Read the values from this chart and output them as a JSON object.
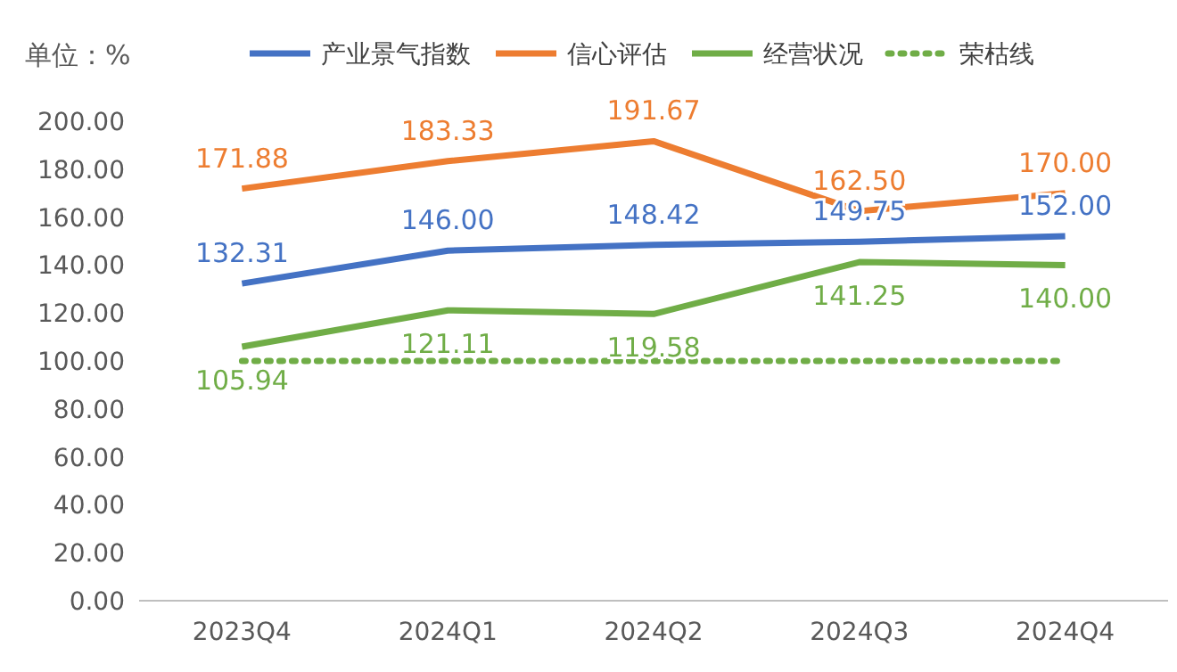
{
  "chart_data": {
    "type": "line",
    "ylabel": "单位：%",
    "categories": [
      "2023Q4",
      "2024Q1",
      "2024Q2",
      "2024Q3",
      "2024Q4"
    ],
    "series": [
      {
        "name": "产业景气指数",
        "color": "#4472c4",
        "values": [
          132.31,
          146.0,
          148.42,
          149.75,
          152.0
        ],
        "value_labels": [
          "132.31",
          "146.00",
          "148.42",
          "149.75",
          "152.00"
        ]
      },
      {
        "name": "信心评估",
        "color": "#ed7d31",
        "values": [
          171.88,
          183.33,
          191.67,
          162.5,
          170.0
        ],
        "value_labels": [
          "171.88",
          "183.33",
          "191.67",
          "162.50",
          "170.00"
        ]
      },
      {
        "name": "经营状况",
        "color": "#70ad47",
        "values": [
          105.94,
          121.11,
          119.58,
          141.25,
          140.0
        ],
        "value_labels": [
          "105.94",
          "121.11",
          "119.58",
          "141.25",
          "140.00"
        ]
      },
      {
        "name": "荣枯线",
        "color": "#70ad47",
        "line_style": "dotted",
        "values": [
          100,
          100,
          100,
          100,
          100
        ]
      }
    ],
    "ylim": [
      0,
      200
    ],
    "yticks": [
      {
        "value": 0,
        "label": "0.00"
      },
      {
        "value": 20,
        "label": "20.00"
      },
      {
        "value": 40,
        "label": "40.00"
      },
      {
        "value": 60,
        "label": "60.00"
      },
      {
        "value": 80,
        "label": "80.00"
      },
      {
        "value": 100,
        "label": "100.00"
      },
      {
        "value": 120,
        "label": "120.00"
      },
      {
        "value": 140,
        "label": "140.00"
      },
      {
        "value": 160,
        "label": "160.00"
      },
      {
        "value": 180,
        "label": "180.00"
      },
      {
        "value": 200,
        "label": "200.00"
      }
    ],
    "legend": "top",
    "grid": false
  }
}
